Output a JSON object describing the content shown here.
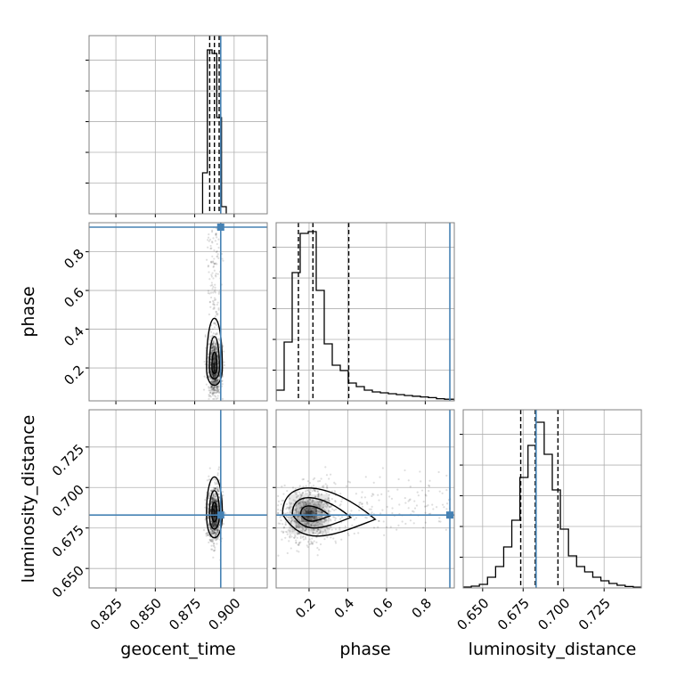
{
  "chart_data": {
    "type": "corner",
    "parameters": [
      "geocent_time",
      "phase",
      "luminosity_distance"
    ],
    "axis_labels": {
      "geocent_time": "geocent_time",
      "phase": "phase",
      "luminosity_distance": "luminosity_distance"
    },
    "ranges": {
      "geocent_time": [
        0.808,
        0.921
      ],
      "phase": [
        0.03,
        0.95
      ],
      "luminosity_distance": [
        0.638,
        0.748
      ]
    },
    "ticks": {
      "geocent_time": [
        {
          "v": 0.825,
          "label": "0.825"
        },
        {
          "v": 0.85,
          "label": "0.850"
        },
        {
          "v": 0.875,
          "label": "0.875"
        },
        {
          "v": 0.9,
          "label": "0.900"
        }
      ],
      "phase": [
        {
          "v": 0.2,
          "label": "0.2"
        },
        {
          "v": 0.4,
          "label": "0.4"
        },
        {
          "v": 0.6,
          "label": "0.6"
        },
        {
          "v": 0.8,
          "label": "0.8"
        }
      ],
      "luminosity_distance": [
        {
          "v": 0.65,
          "label": "0.650"
        },
        {
          "v": 0.675,
          "label": "0.675"
        },
        {
          "v": 0.7,
          "label": "0.700"
        },
        {
          "v": 0.725,
          "label": "0.725"
        }
      ]
    },
    "truths": {
      "geocent_time": 0.8915,
      "phase": 0.927,
      "luminosity_distance": 0.683
    },
    "truth_color": "#4682b4",
    "quantiles": {
      "geocent_time": [
        0.8845,
        0.8875,
        0.8905
      ],
      "phase": [
        0.145,
        0.22,
        0.405
      ],
      "luminosity_distance": [
        0.6735,
        0.6825,
        0.6965
      ]
    },
    "histograms": {
      "geocent_time": {
        "edges": [
          0.88,
          0.883,
          0.886,
          0.889,
          0.892,
          0.895
        ],
        "counts": [
          0.23,
          0.92,
          0.9,
          0.54,
          0.04
        ]
      },
      "phase": {
        "edges": [
          0.03,
          0.0714,
          0.1128,
          0.1542,
          0.1956,
          0.237,
          0.2784,
          0.3198,
          0.3612,
          0.4026,
          0.444,
          0.4854,
          0.5268,
          0.5682,
          0.6096,
          0.651,
          0.6924,
          0.7338,
          0.7752,
          0.8166,
          0.858,
          0.8994,
          0.95
        ],
        "counts": [
          0.06,
          0.33,
          0.72,
          0.94,
          0.95,
          0.62,
          0.32,
          0.2,
          0.17,
          0.1,
          0.08,
          0.06,
          0.05,
          0.045,
          0.04,
          0.035,
          0.03,
          0.026,
          0.022,
          0.018,
          0.012,
          0.009
        ]
      },
      "luminosity_distance": {
        "edges": [
          0.638,
          0.643,
          0.648,
          0.653,
          0.658,
          0.663,
          0.668,
          0.673,
          0.678,
          0.683,
          0.688,
          0.693,
          0.698,
          0.703,
          0.708,
          0.713,
          0.718,
          0.723,
          0.728,
          0.733,
          0.738,
          0.743,
          0.748
        ],
        "counts": [
          0.005,
          0.01,
          0.02,
          0.06,
          0.12,
          0.23,
          0.38,
          0.62,
          0.8,
          0.93,
          0.75,
          0.55,
          0.33,
          0.18,
          0.12,
          0.09,
          0.06,
          0.04,
          0.025,
          0.015,
          0.008,
          0.004
        ]
      }
    },
    "grid": true
  }
}
